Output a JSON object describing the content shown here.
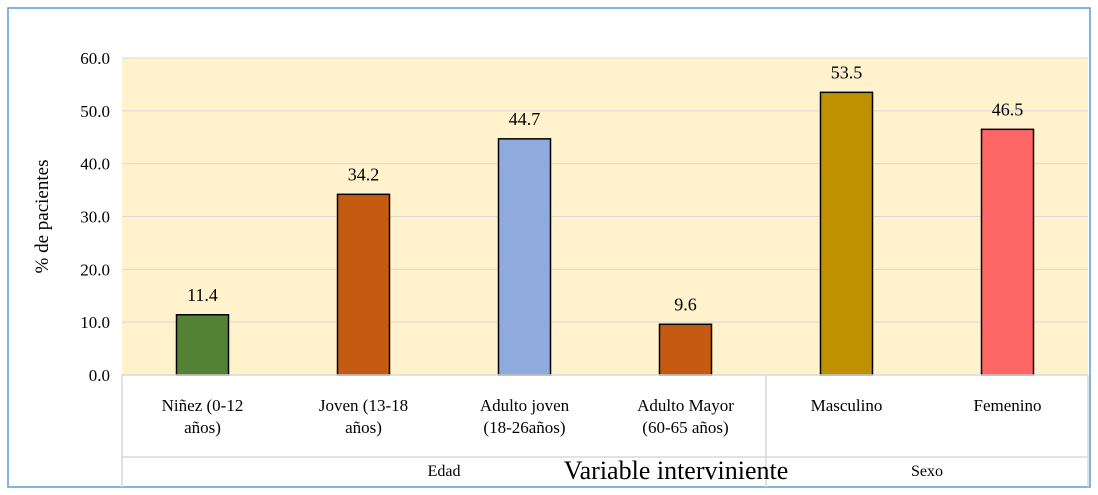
{
  "chart_data": {
    "type": "bar",
    "title": "",
    "xlabel": "Variable interviniente",
    "ylabel": "% de pacientes",
    "ylim": [
      0,
      60
    ],
    "yticks": [
      "0.0",
      "10.0",
      "20.0",
      "30.0",
      "40.0",
      "50.0",
      "60.0"
    ],
    "grid": true,
    "legend": "none",
    "categories": [
      [
        "Niñez (0-12",
        "años)"
      ],
      [
        "Joven (13-18",
        "años)"
      ],
      [
        "Adulto joven",
        "(18-26años)"
      ],
      [
        "Adulto Mayor",
        "(60-65 años)"
      ],
      [
        "Masculino"
      ],
      [
        "Femenino"
      ]
    ],
    "values": [
      11.4,
      34.2,
      44.7,
      9.6,
      53.5,
      46.5
    ],
    "value_labels": [
      "11.4",
      "34.2",
      "44.7",
      "9.6",
      "53.5",
      "46.5"
    ],
    "bar_colors": [
      "#548235",
      "#C55A11",
      "#8FAADC",
      "#C55A11",
      "#BF9000",
      "#FF6666"
    ],
    "groups": [
      {
        "label": "Edad",
        "categories": 4
      },
      {
        "label": "Sexo",
        "categories": 2
      }
    ]
  },
  "colors": {
    "plot_background": "#FFF2CC",
    "frame_border": "#5B9BD5",
    "gridline": "#D9D9D9",
    "bar_outline": "#000000"
  }
}
